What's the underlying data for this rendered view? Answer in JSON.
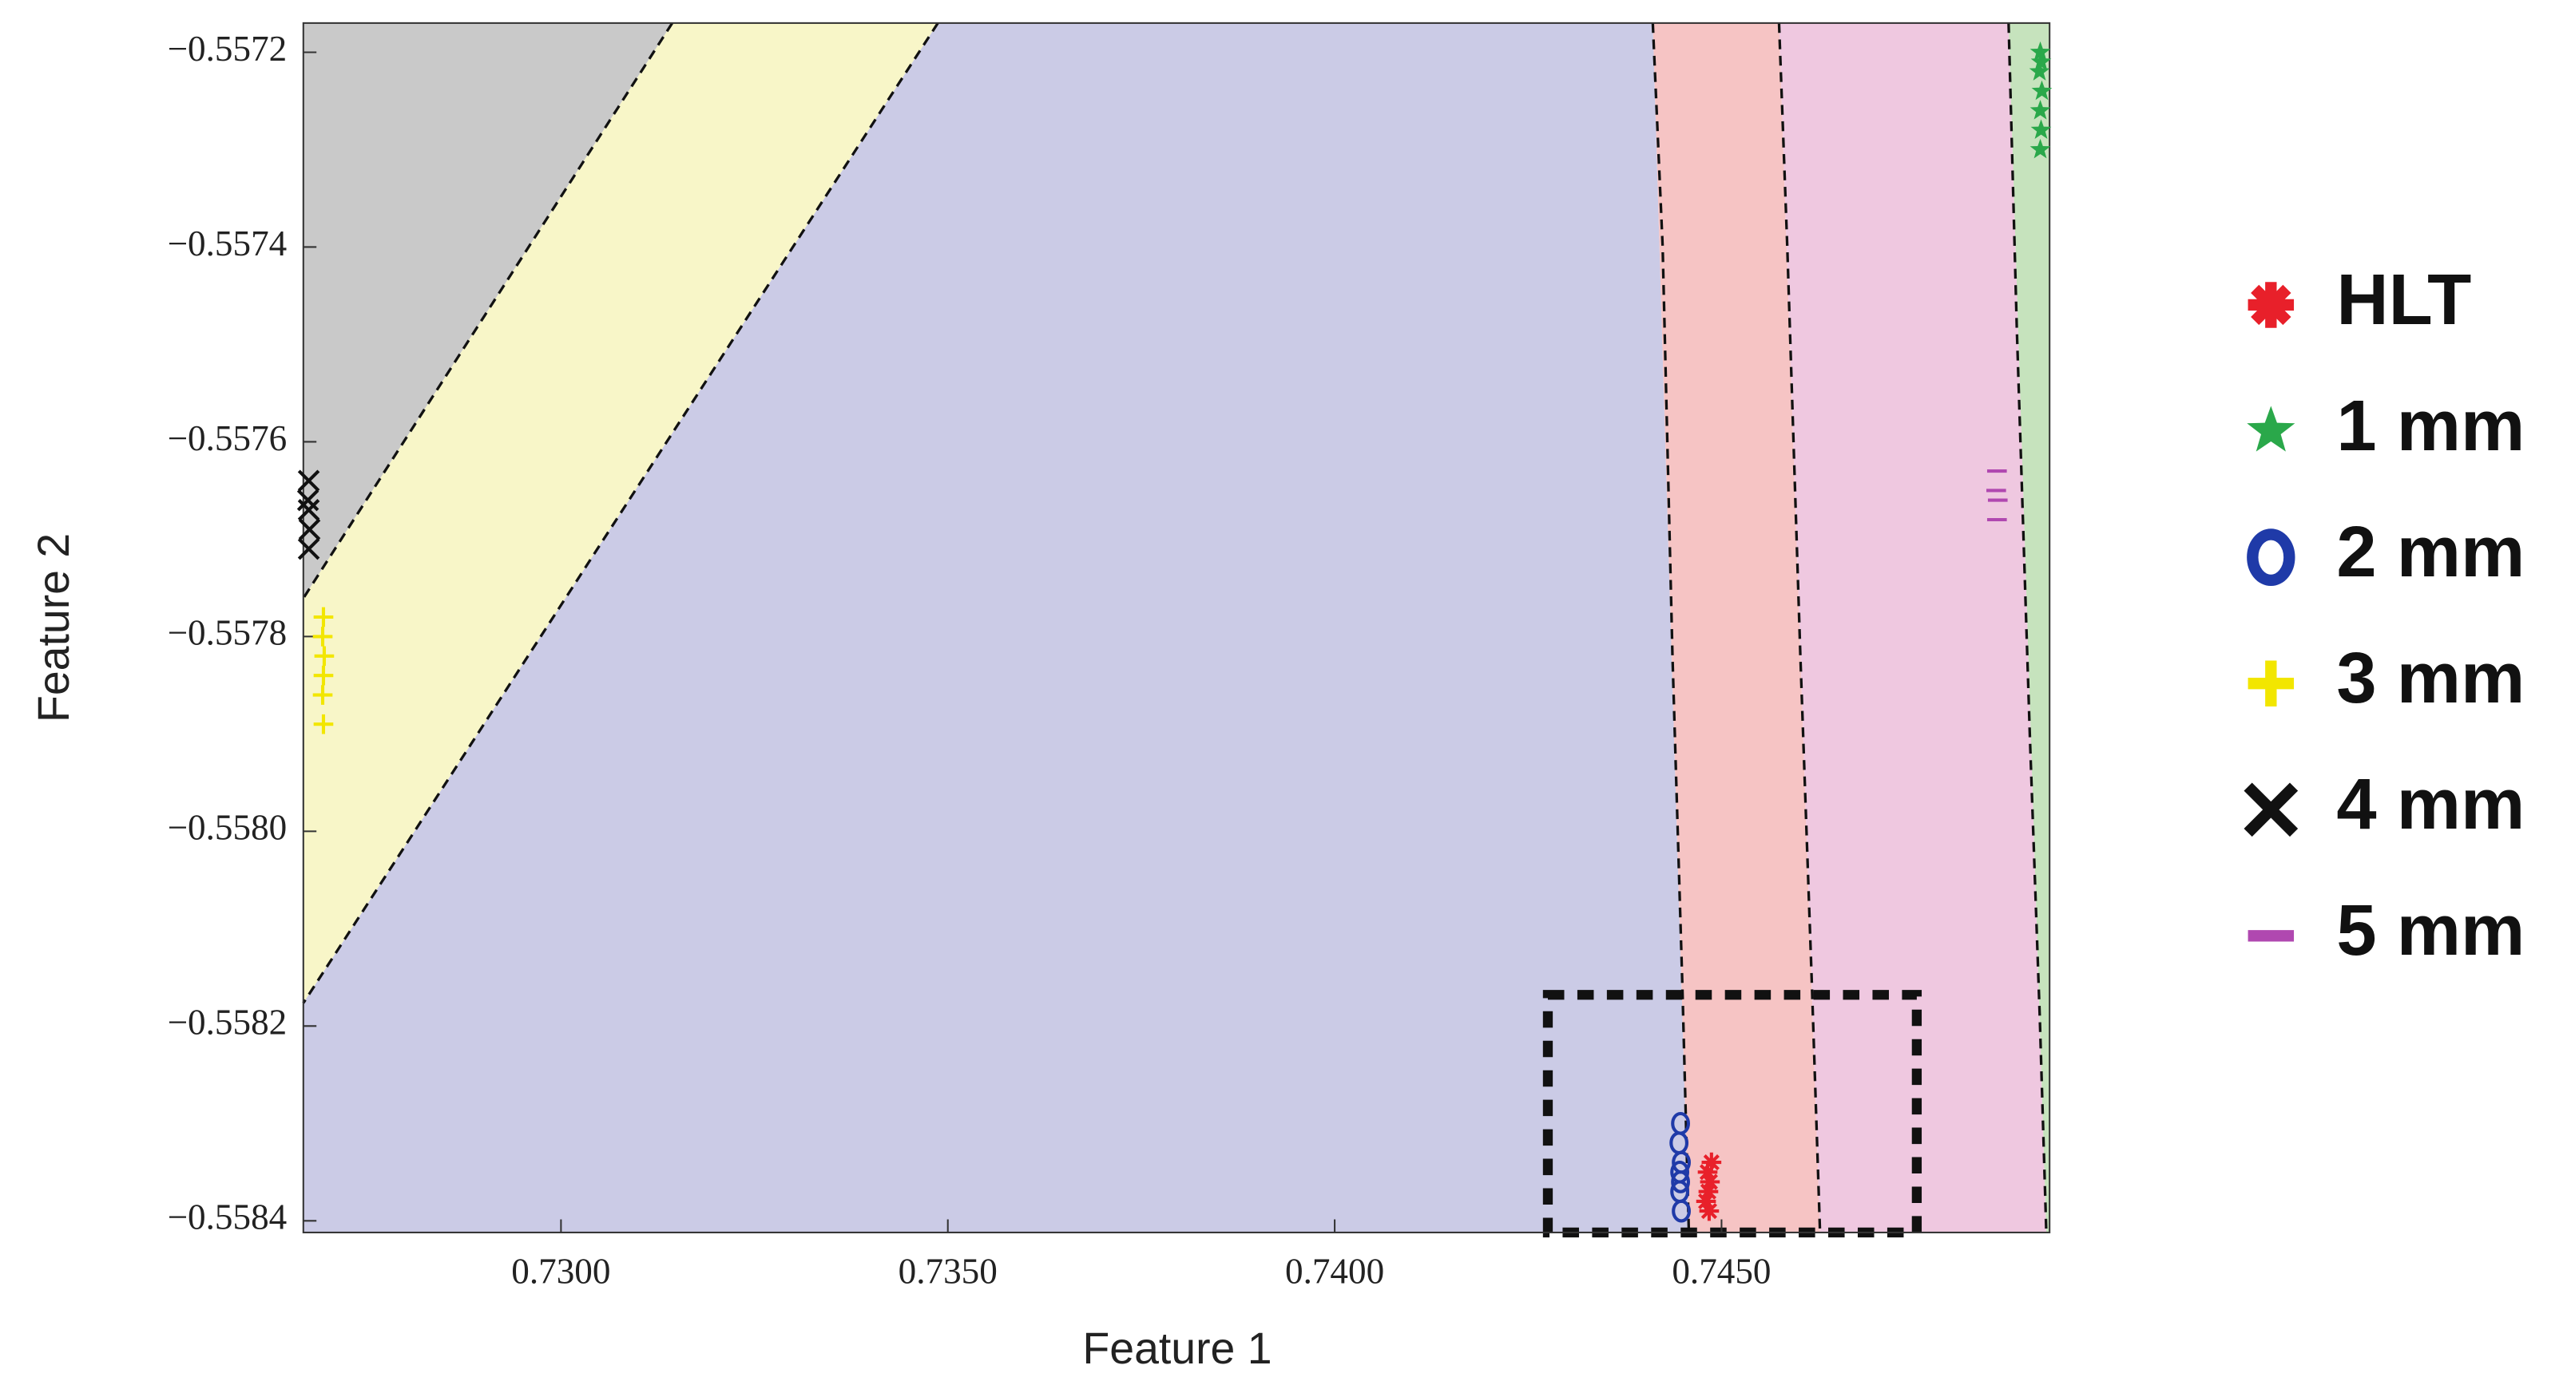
{
  "chart_data": {
    "type": "scatter",
    "xlabel": "Feature 1",
    "ylabel": "Feature 2",
    "xlim": [
      0.72667,
      0.74924
    ],
    "ylim": [
      -0.558412,
      -0.55717
    ],
    "xticks": [
      {
        "value": 0.73,
        "label": "0.7300"
      },
      {
        "value": 0.735,
        "label": "0.7350"
      },
      {
        "value": 0.74,
        "label": "0.7400"
      },
      {
        "value": 0.745,
        "label": "0.7450"
      }
    ],
    "yticks": [
      {
        "value": -0.5572,
        "label": "−0.5572"
      },
      {
        "value": -0.5574,
        "label": "−0.5574"
      },
      {
        "value": -0.5576,
        "label": "−0.5576"
      },
      {
        "value": -0.5578,
        "label": "−0.5578"
      },
      {
        "value": -0.558,
        "label": "−0.5580"
      },
      {
        "value": -0.5582,
        "label": "−0.5582"
      },
      {
        "value": -0.5584,
        "label": "−0.5584"
      }
    ],
    "legend": "outside right",
    "series": [
      {
        "name": "HLT",
        "color": "#e8202a",
        "marker": "asterisk",
        "x": [
          0.74482,
          0.74485,
          0.7448,
          0.74487,
          0.74483,
          0.74484
        ],
        "values": [
          -0.55835,
          -0.55836,
          -0.55838,
          -0.55834,
          -0.55837,
          -0.55839
        ]
      },
      {
        "name": "1 mm",
        "color": "#2aa84a",
        "marker": "star",
        "x": [
          0.74912,
          0.74913,
          0.74911,
          0.74914,
          0.74912,
          0.74913,
          0.74912
        ],
        "values": [
          -0.5572,
          -0.55721,
          -0.55722,
          -0.55724,
          -0.55726,
          -0.55728,
          -0.5573
        ]
      },
      {
        "name": "2 mm",
        "color": "#1f3aa8",
        "marker": "circle",
        "x": [
          0.74447,
          0.74445,
          0.74448,
          0.74446,
          0.74447,
          0.74446,
          0.74448
        ],
        "values": [
          -0.5583,
          -0.55832,
          -0.55834,
          -0.55835,
          -0.55836,
          -0.55837,
          -0.55839
        ]
      },
      {
        "name": "3 mm",
        "color": "#f2e600",
        "marker": "plus",
        "x": [
          0.72693,
          0.72692,
          0.72694,
          0.72693,
          0.72692,
          0.72693
        ],
        "values": [
          -0.55778,
          -0.5578,
          -0.55782,
          -0.55784,
          -0.55786,
          -0.55789
        ]
      },
      {
        "name": "4 mm",
        "color": "#111111",
        "marker": "x",
        "x": [
          0.72674,
          0.72673,
          0.72674,
          0.72675,
          0.72674
        ],
        "values": [
          -0.55764,
          -0.55766,
          -0.55767,
          -0.55769,
          -0.55771
        ]
      },
      {
        "name": "5 mm",
        "color": "#b048b0",
        "marker": "minus",
        "x": [
          0.74856,
          0.74855,
          0.74857,
          0.74856
        ],
        "values": [
          -0.55763,
          -0.55765,
          -0.55766,
          -0.55768
        ]
      }
    ]
  }
}
